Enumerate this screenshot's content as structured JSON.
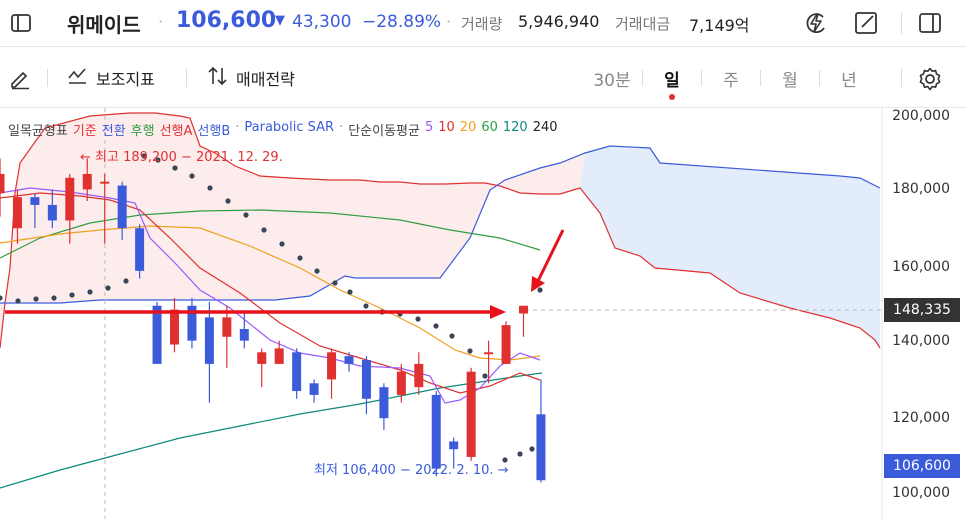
{
  "header": {
    "stock_name": "위메이드",
    "dot": "·",
    "price": "106,600",
    "change_arrow": "▼",
    "change_amount": "43,300",
    "change_pct": "−28.89%",
    "volume_label": "거래량",
    "volume_value": "5,946,940",
    "amount_label": "거래대금",
    "amount_value": "7,149억",
    "colors": {
      "price": "#3b5bdb",
      "down": "#3b5bdb",
      "up": "#e03131"
    }
  },
  "icons": {
    "sidebar_toggle": "sidebar-left-icon",
    "flash": "lightning-icon",
    "draw": "edit-square-icon",
    "panel": "panel-right-icon",
    "pen": "pen-icon",
    "indicator": "indicator-icon",
    "strategy": "sort-arrows-icon",
    "settings": "gear-icon"
  },
  "toolbar": {
    "indicator_label": "보조지표",
    "strategy_label": "매매전략",
    "periods": [
      {
        "label": "30분",
        "active": false
      },
      {
        "label": "일",
        "active": true
      },
      {
        "label": "주",
        "active": false
      },
      {
        "label": "월",
        "active": false
      },
      {
        "label": "년",
        "active": false
      }
    ]
  },
  "legend": {
    "ichimoku": "일목균형표",
    "kijun": "기준",
    "tenkan": "전환",
    "chikou": "후행",
    "spanA": "선행A",
    "spanB": "선행B",
    "dot": "·",
    "psar": "Parabolic SAR",
    "sma": "단순이동평균",
    "ma_periods": [
      "5",
      "10",
      "20",
      "60",
      "120",
      "240"
    ],
    "ma_colors": [
      "#9b59ff",
      "#e03131",
      "#f0a020",
      "#2f9e44",
      "#0c8a7a",
      "#222222"
    ]
  },
  "annotations": {
    "high": "← 최고 189,200 − 2021. 12. 29.",
    "low": "최저 106,400 − 2022. 2. 10.  →"
  },
  "axis": {
    "ticks": [
      "200,000",
      "180,000",
      "160,000",
      "140,000",
      "120,000",
      "100,000"
    ],
    "current_tag": "148,335",
    "price_tag": "106,600"
  },
  "chart_data": {
    "type": "candlestick",
    "y_range": [
      97000,
      203000
    ],
    "y_ticks": [
      200000,
      180000,
      160000,
      140000,
      120000,
      100000
    ],
    "high": 189200,
    "low": 106400,
    "last": 106600,
    "crosshair_value": 148335,
    "candles": [
      {
        "o": 181000,
        "c": 186000,
        "h": 190000,
        "l": 175000
      },
      {
        "o": 172000,
        "c": 180000,
        "h": 182000,
        "l": 168000
      },
      {
        "o": 180000,
        "c": 178000,
        "h": 181000,
        "l": 172000
      },
      {
        "o": 178000,
        "c": 174000,
        "h": 182000,
        "l": 172000
      },
      {
        "o": 174000,
        "c": 185000,
        "h": 186000,
        "l": 168000
      },
      {
        "o": 182000,
        "c": 186000,
        "h": 190000,
        "l": 179000
      },
      {
        "o": 184000,
        "c": 184000,
        "h": 186000,
        "l": 168000
      },
      {
        "o": 183000,
        "c": 172000,
        "h": 184000,
        "l": 169000
      },
      {
        "o": 172000,
        "c": 161000,
        "h": 173000,
        "l": 159000
      },
      {
        "o": 152000,
        "c": 137000,
        "h": 153000,
        "l": 137000
      },
      {
        "o": 142000,
        "c": 151000,
        "h": 154000,
        "l": 140000
      },
      {
        "o": 152000,
        "c": 143000,
        "h": 154000,
        "l": 141000
      },
      {
        "o": 149000,
        "c": 137000,
        "h": 153000,
        "l": 127000
      },
      {
        "o": 144000,
        "c": 149000,
        "h": 152000,
        "l": 136000
      },
      {
        "o": 146000,
        "c": 143000,
        "h": 150000,
        "l": 141000
      },
      {
        "o": 137000,
        "c": 140000,
        "h": 141000,
        "l": 131000
      },
      {
        "o": 137000,
        "c": 141000,
        "h": 143000,
        "l": 137000
      },
      {
        "o": 140000,
        "c": 130000,
        "h": 141000,
        "l": 128000
      },
      {
        "o": 132000,
        "c": 129000,
        "h": 133000,
        "l": 127000
      },
      {
        "o": 133000,
        "c": 140000,
        "h": 141000,
        "l": 128000
      },
      {
        "o": 139000,
        "c": 137000,
        "h": 140000,
        "l": 135000
      },
      {
        "o": 138000,
        "c": 128000,
        "h": 139000,
        "l": 124000
      },
      {
        "o": 131000,
        "c": 123000,
        "h": 132000,
        "l": 120000
      },
      {
        "o": 129000,
        "c": 135000,
        "h": 137000,
        "l": 127000
      },
      {
        "o": 131000,
        "c": 137000,
        "h": 140000,
        "l": 129000
      },
      {
        "o": 129000,
        "c": 110000,
        "h": 130000,
        "l": 108000
      },
      {
        "o": 117000,
        "c": 115000,
        "h": 118000,
        "l": 110000
      },
      {
        "o": 113000,
        "c": 135000,
        "h": 136000,
        "l": 112000
      },
      {
        "o": 140000,
        "c": 140000,
        "h": 143000,
        "l": 132000
      },
      {
        "o": 137000,
        "c": 147000,
        "h": 148000,
        "l": 137000
      },
      {
        "o": 150000,
        "c": 152000,
        "h": 152000,
        "l": 144000
      },
      {
        "o": 124000,
        "c": 107000,
        "h": 133000,
        "l": 106400
      }
    ]
  }
}
